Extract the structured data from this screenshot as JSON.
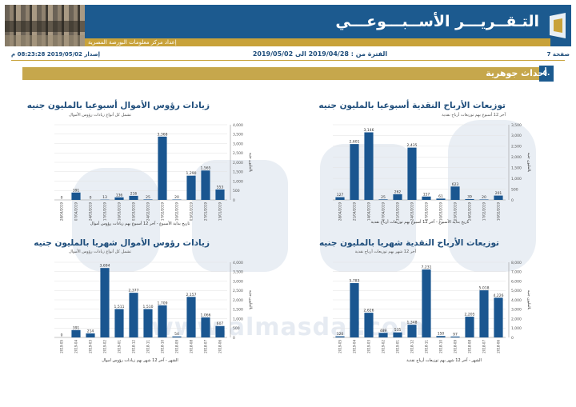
{
  "header": {
    "title": "التـقــريـــر الأســبـــوعـــي",
    "subtitle": "إعداد مركز معلومات البورصة المصرية"
  },
  "meta": {
    "page": "صفحة 7",
    "period": "الفترة من : 2019/04/28 الى 2019/05/02",
    "issued": "إصدار 2019/05/02 08:23:28 م"
  },
  "section": {
    "number": "٥.",
    "title": "أحداث جوهرية"
  },
  "watermark": {
    "url": "www.almasdar.com"
  },
  "colors": {
    "bar": "#1a5690",
    "axis": "#999999",
    "grid": "#e2e2e2"
  },
  "chart_data": [
    {
      "type": "bar",
      "title": "توزيعات الأرباح النقدية أسبوعيا بالمليون جنيه",
      "subtitle": "آخر 12 أسبوع بهم توزيعات أرباح نقدية",
      "xlabel": "تاريخ بداية الأسبوع - آخر 12 أسبوع بهم توزيعات أرباح نقدية",
      "ylabel": "بالمليون جنيه",
      "categories": [
        "28/04/2019",
        "21/04/2019",
        "14/04/2019",
        "07/04/2019",
        "31/03/2019",
        "24/03/2019",
        "17/03/2019",
        "10/03/2019",
        "03/03/2019",
        "24/02/2019",
        "17/02/2019",
        "10/02/2019"
      ],
      "values": [
        127,
        2601,
        3146,
        25,
        262,
        2435,
        157,
        61,
        623,
        39,
        20,
        201
      ],
      "value_labels": [
        "127",
        "2,601",
        "3,146",
        "25",
        "262",
        "2,435",
        "157",
        "61",
        "623",
        "39",
        "20",
        "201"
      ],
      "yticks": [
        0,
        500,
        1000,
        1500,
        2000,
        2500,
        3000,
        3500
      ],
      "ytick_labels": [
        "0",
        "500",
        "1,000",
        "1,500",
        "2,000",
        "2,500",
        "3,000",
        "3,500"
      ],
      "ylim": [
        0,
        3500
      ]
    },
    {
      "type": "bar",
      "title": "زيادات رؤوس الأموال أسبوعيا بالمليون جنيه",
      "subtitle": "تشمل كل أنواع زيادات رؤوس الأموال",
      "xlabel": "تاريخ بداية الأسبوع - آخر 12 أسبوع بهم زيادات رؤوس أموال",
      "ylabel": "بالمليون جنيه",
      "categories": [
        "28/04/2019",
        "07/04/2019",
        "24/03/2019",
        "17/03/2019",
        "10/03/2019",
        "03/03/2019",
        "24/02/2019",
        "17/02/2019",
        "10/02/2019",
        "03/02/2019",
        "27/01/2019",
        "13/01/2019"
      ],
      "values": [
        0,
        391,
        0,
        13,
        136,
        216,
        25,
        3368,
        20,
        1290,
        1565,
        553
      ],
      "value_labels": [
        "0",
        "391",
        "0",
        "13",
        "136",
        "216",
        "25",
        "3,368",
        "20",
        "1,290",
        "1,565",
        "553"
      ],
      "yticks": [
        0,
        500,
        1000,
        1500,
        2000,
        2500,
        3000,
        3500,
        4000
      ],
      "ytick_labels": [
        "0",
        "500",
        "1,000",
        "1,500",
        "2,000",
        "2,500",
        "3,000",
        "3,500",
        "4,000"
      ],
      "ylim": [
        0,
        4000
      ]
    },
    {
      "type": "bar",
      "title": "توزيعات الأرباح النقدية شهريا بالمليون جنيه",
      "subtitle": "آخر 12 شهر بهم توزيعات أرباح نقدية",
      "xlabel": "الشهر - آخر 12 شهر بهم توزيعات أرباح نقدية",
      "ylabel": "بالمليون جنيه",
      "categories": [
        "2019-05",
        "2019-04",
        "2019-03",
        "2019-02",
        "2019-01",
        "2018-12",
        "2018-11",
        "2018-10",
        "2018-09",
        "2018-08",
        "2018-07",
        "2018-06"
      ],
      "values": [
        120,
        5783,
        2626,
        489,
        535,
        1348,
        7231,
        150,
        97,
        2205,
        5018,
        4226
      ],
      "value_labels": [
        "120",
        "5,783",
        "2,626",
        "489",
        "535",
        "1,348",
        "7,231",
        "150",
        "97",
        "2,205",
        "5,018",
        "4,226"
      ],
      "yticks": [
        0,
        1000,
        2000,
        3000,
        4000,
        5000,
        6000,
        7000,
        8000
      ],
      "ytick_labels": [
        "0",
        "1,000",
        "2,000",
        "3,000",
        "4,000",
        "5,000",
        "6,000",
        "7,000",
        "8,000"
      ],
      "ylim": [
        0,
        8000
      ]
    },
    {
      "type": "bar",
      "title": "زيادات رؤوس الأموال شهريا بالمليون جنيه",
      "subtitle": "تشمل كل أنواع زيادات رؤوس الأموال",
      "xlabel": "الشهر - آخر 12 شهر بهم زيادات رؤوس اموال",
      "ylabel": "بالمليون جنيه",
      "categories": [
        "2019-05",
        "2019-04",
        "2019-03",
        "2019-02",
        "2019-01",
        "2018-12",
        "2018-11",
        "2018-10",
        "2018-09",
        "2018-08",
        "2018-07",
        "2018-06"
      ],
      "values": [
        0,
        391,
        214,
        3694,
        1511,
        2377,
        1510,
        1709,
        54,
        2157,
        1066,
        607
      ],
      "value_labels": [
        "0",
        "391",
        "214",
        "3,694",
        "1,511",
        "2,377",
        "1,510",
        "1,709",
        "54",
        "2,157",
        "1,066",
        "607"
      ],
      "yticks": [
        0,
        500,
        1000,
        1500,
        2000,
        2500,
        3000,
        3500,
        4000
      ],
      "ytick_labels": [
        "0",
        "500",
        "1,000",
        "1,500",
        "2,000",
        "2,500",
        "3,000",
        "3,500",
        "4,000"
      ],
      "ylim": [
        0,
        4000
      ]
    }
  ]
}
